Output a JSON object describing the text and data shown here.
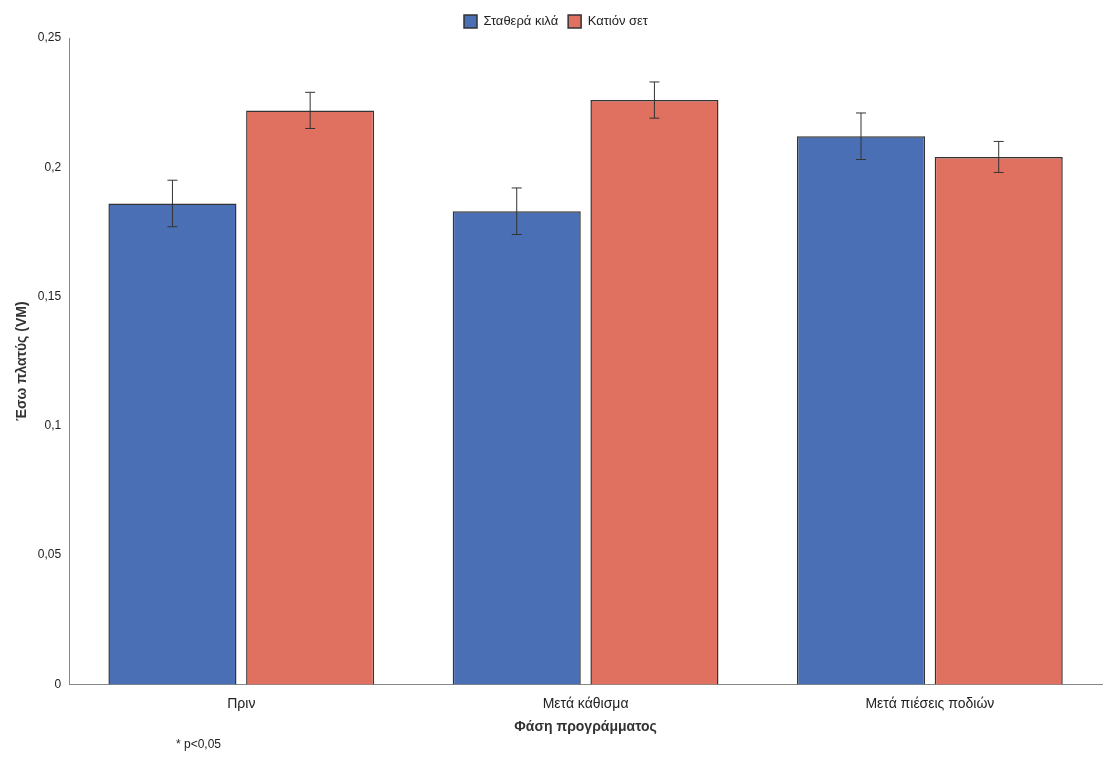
{
  "chart_data": {
    "type": "bar",
    "xlabel": "Φάση προγράμματος",
    "ylabel": "Έσω πλατύς (VM)",
    "categories": [
      "Πριν",
      "Μετά κάθισμα",
      "Μετά πιέσεις ποδιών"
    ],
    "series": [
      {
        "name": "Σταθερά κιλά",
        "color": "#4a6fb5",
        "values": [
          0.186,
          0.183,
          0.212
        ],
        "errors": [
          0.009,
          0.009,
          0.009
        ]
      },
      {
        "name": "Κατιόν σετ",
        "color": "#e07060",
        "values": [
          0.222,
          0.226,
          0.204
        ],
        "errors": [
          0.007,
          0.007,
          0.006
        ]
      }
    ],
    "ylim": [
      0,
      0.25
    ],
    "yticks": [
      0,
      {
        "value": 0.05,
        "label": "0,05"
      },
      {
        "value": 0.1,
        "label": "0,1"
      },
      {
        "value": 0.15,
        "label": "0,15"
      },
      {
        "value": 0.2,
        "label": "0,2"
      },
      {
        "value": 0.25,
        "label": "0,25"
      }
    ],
    "grid": false,
    "legend": "top",
    "annotations": [
      "* p<0,05"
    ]
  }
}
